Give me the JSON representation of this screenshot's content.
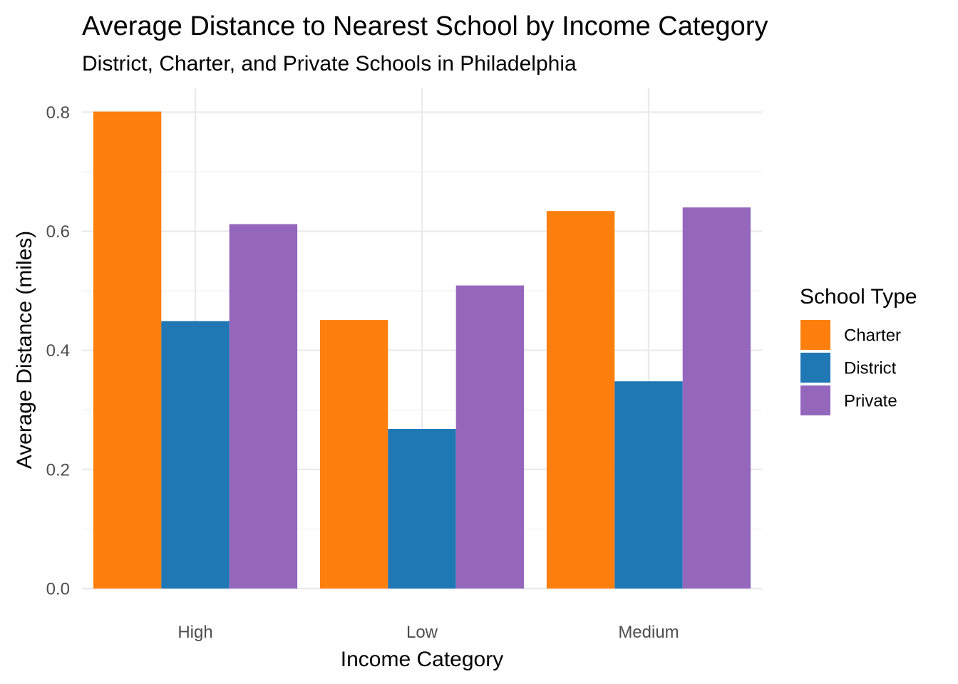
{
  "chart_data": {
    "type": "bar",
    "title": "Average Distance to Nearest School by Income Category",
    "subtitle": "District, Charter, and Private Schools in Philadelphia",
    "xlabel": "Income Category",
    "ylabel": "Average Distance (miles)",
    "categories": [
      "High",
      "Low",
      "Medium"
    ],
    "series": [
      {
        "name": "Charter",
        "color": "#ff7f0e",
        "values": [
          0.801,
          0.451,
          0.634
        ]
      },
      {
        "name": "District",
        "color": "#1f77b4",
        "values": [
          0.449,
          0.268,
          0.348
        ]
      },
      {
        "name": "Private",
        "color": "#9467bd",
        "values": [
          0.612,
          0.509,
          0.64
        ]
      }
    ],
    "ylim": [
      0,
      0.84
    ],
    "yticks": [
      0.0,
      0.2,
      0.4,
      0.6,
      0.8
    ],
    "ytick_labels": [
      "0.0",
      "0.2",
      "0.4",
      "0.6",
      "0.8"
    ],
    "grid": true,
    "legend": {
      "title": "School Type",
      "position": "right"
    }
  }
}
